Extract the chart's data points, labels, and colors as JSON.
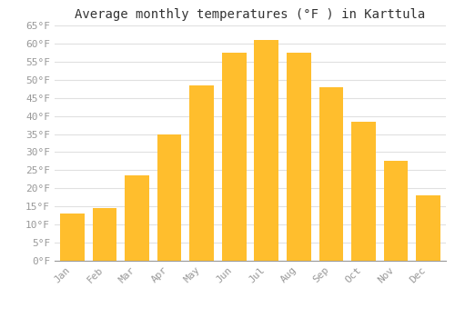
{
  "title": "Average monthly temperatures (°F ) in Karttula",
  "months": [
    "Jan",
    "Feb",
    "Mar",
    "Apr",
    "May",
    "Jun",
    "Jul",
    "Aug",
    "Sep",
    "Oct",
    "Nov",
    "Dec"
  ],
  "values": [
    13,
    14.5,
    23.5,
    35,
    48.5,
    57.5,
    61,
    57.5,
    48,
    38.5,
    27.5,
    18
  ],
  "bar_color": "#FFBE2D",
  "background_color": "#FFFFFF",
  "plot_background": "#FFFFFF",
  "ylim": [
    0,
    65
  ],
  "yticks": [
    0,
    5,
    10,
    15,
    20,
    25,
    30,
    35,
    40,
    45,
    50,
    55,
    60,
    65
  ],
  "grid_color": "#E0E0E0",
  "tick_label_color": "#999999",
  "title_color": "#333333",
  "title_fontsize": 10,
  "tick_fontsize": 8,
  "bar_width": 0.75
}
